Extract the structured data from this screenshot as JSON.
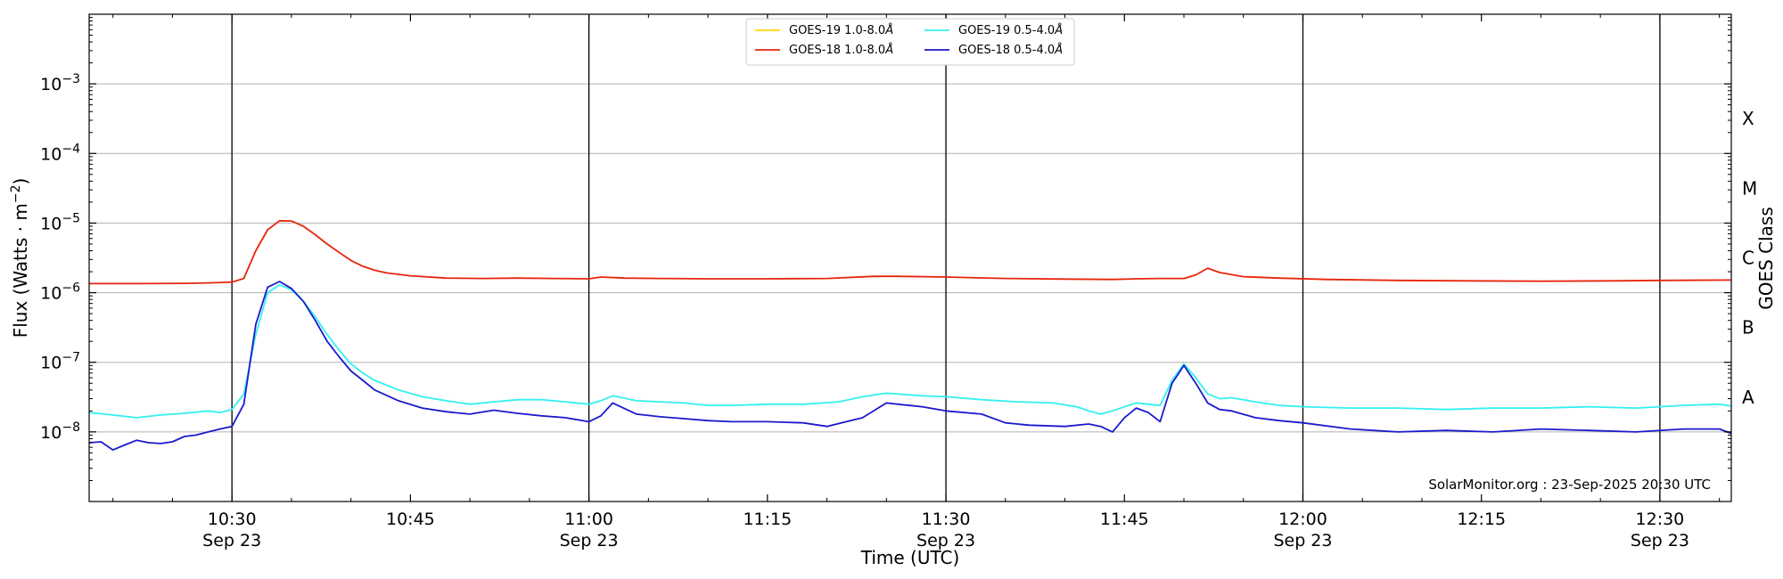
{
  "chart_data": {
    "type": "line",
    "title": "",
    "xlabel": "Time (UTC)",
    "ylabel": "Flux (Watts · m",
    "ylabel_exp": "−2",
    "ylabel_close": ")",
    "y2label": "GOES Class",
    "yscale": "log",
    "ylim": [
      1e-09,
      0.01
    ],
    "xlim": [
      "10:18",
      "12:36"
    ],
    "x_minutes_range": [
      618,
      756
    ],
    "grid": "horizontal at decades",
    "legend_position": "top-center",
    "annotation": "SolarMonitor.org : 23-Sep-2025 20:30 UTC",
    "y_ticks": [
      {
        "value": 1e-08,
        "base": "10",
        "exp": "−8"
      },
      {
        "value": 1e-07,
        "base": "10",
        "exp": "−7"
      },
      {
        "value": 1e-06,
        "base": "10",
        "exp": "−6"
      },
      {
        "value": 1e-05,
        "base": "10",
        "exp": "−5"
      },
      {
        "value": 0.0001,
        "base": "10",
        "exp": "−4"
      },
      {
        "value": 0.001,
        "base": "10",
        "exp": "−3"
      }
    ],
    "x_ticks": [
      {
        "time": "10:30",
        "minutes": 630,
        "date": "Sep 23",
        "major": true
      },
      {
        "time": "10:45",
        "minutes": 645,
        "date": "",
        "major": false
      },
      {
        "time": "11:00",
        "minutes": 660,
        "date": "Sep 23",
        "major": true
      },
      {
        "time": "11:15",
        "minutes": 675,
        "date": "",
        "major": false
      },
      {
        "time": "11:30",
        "minutes": 690,
        "date": "Sep 23",
        "major": true
      },
      {
        "time": "11:45",
        "minutes": 705,
        "date": "",
        "major": false
      },
      {
        "time": "12:00",
        "minutes": 720,
        "date": "Sep 23",
        "major": true
      },
      {
        "time": "12:15",
        "minutes": 735,
        "date": "",
        "major": false
      },
      {
        "time": "12:30",
        "minutes": 750,
        "date": "Sep 23",
        "major": true
      }
    ],
    "goes_classes": [
      {
        "label": "A",
        "value": 1e-08
      },
      {
        "label": "B",
        "value": 1e-07
      },
      {
        "label": "C",
        "value": 1e-06
      },
      {
        "label": "M",
        "value": 1e-05
      },
      {
        "label": "X",
        "value": 0.0001
      }
    ],
    "series": [
      {
        "name": "GOES-19 1.0-8.0",
        "name_unit": "Å",
        "color": "#ffd700",
        "x": [],
        "y": []
      },
      {
        "name": "GOES-18 1.0-8.0",
        "name_unit": "Å",
        "color": "#e8250c",
        "x": [
          618,
          622,
          626,
          628,
          630,
          631,
          632,
          633,
          634,
          635,
          636,
          637,
          638,
          639,
          640,
          641,
          642,
          643,
          645,
          648,
          651,
          654,
          657,
          660,
          661,
          663,
          666,
          670,
          675,
          680,
          684,
          686,
          690,
          695,
          700,
          704,
          706,
          708,
          710,
          711,
          712,
          713,
          715,
          718,
          722,
          728,
          734,
          740,
          746,
          750,
          756
        ],
        "y": [
          1.35e-06,
          1.35e-06,
          1.36e-06,
          1.38e-06,
          1.42e-06,
          1.6e-06,
          4e-06,
          8e-06,
          1.08e-05,
          1.07e-05,
          9e-06,
          6.8e-06,
          5e-06,
          3.8e-06,
          2.9e-06,
          2.4e-06,
          2.1e-06,
          1.92e-06,
          1.75e-06,
          1.62e-06,
          1.6e-06,
          1.62e-06,
          1.6e-06,
          1.58e-06,
          1.68e-06,
          1.62e-06,
          1.6e-06,
          1.58e-06,
          1.58e-06,
          1.6e-06,
          1.72e-06,
          1.72e-06,
          1.68e-06,
          1.6e-06,
          1.57e-06,
          1.55e-06,
          1.58e-06,
          1.6e-06,
          1.6e-06,
          1.8e-06,
          2.25e-06,
          1.95e-06,
          1.7e-06,
          1.62e-06,
          1.55e-06,
          1.5e-06,
          1.48e-06,
          1.46e-06,
          1.48e-06,
          1.5e-06,
          1.52e-06
        ]
      },
      {
        "name": "GOES-19 0.5-4.0",
        "name_unit": "Å",
        "color": "#33f0f0",
        "x": [
          618,
          620,
          622,
          624,
          626,
          628,
          629,
          630,
          631,
          632,
          633,
          634,
          635,
          636,
          637,
          638,
          639,
          640,
          641,
          642,
          644,
          646,
          648,
          650,
          652,
          654,
          656,
          658,
          660,
          661,
          662,
          664,
          666,
          668,
          670,
          672,
          675,
          678,
          681,
          683,
          685,
          688,
          690,
          693,
          696,
          699,
          701,
          702,
          703,
          704,
          705,
          706,
          707,
          708,
          709,
          710,
          711,
          712,
          713,
          714,
          716,
          718,
          720,
          724,
          728,
          732,
          736,
          740,
          744,
          748,
          752,
          755,
          756
        ],
        "y": [
          1.9e-08,
          1.75e-08,
          1.6e-08,
          1.75e-08,
          1.85e-08,
          2e-08,
          1.9e-08,
          2.1e-08,
          3.5e-08,
          2.5e-07,
          1e-06,
          1.3e-06,
          1.1e-06,
          7.5e-07,
          4.5e-07,
          2.5e-07,
          1.5e-07,
          9.5e-08,
          7e-08,
          5.5e-08,
          4e-08,
          3.2e-08,
          2.8e-08,
          2.5e-08,
          2.7e-08,
          2.9e-08,
          2.9e-08,
          2.7e-08,
          2.5e-08,
          2.8e-08,
          3.3e-08,
          2.8e-08,
          2.7e-08,
          2.6e-08,
          2.4e-08,
          2.4e-08,
          2.5e-08,
          2.5e-08,
          2.7e-08,
          3.2e-08,
          3.6e-08,
          3.3e-08,
          3.2e-08,
          2.9e-08,
          2.7e-08,
          2.6e-08,
          2.3e-08,
          2e-08,
          1.8e-08,
          2e-08,
          2.3e-08,
          2.6e-08,
          2.5e-08,
          2.4e-08,
          5.5e-08,
          9.5e-08,
          6e-08,
          3.5e-08,
          3e-08,
          3.1e-08,
          2.7e-08,
          2.4e-08,
          2.3e-08,
          2.2e-08,
          2.2e-08,
          2.1e-08,
          2.2e-08,
          2.2e-08,
          2.3e-08,
          2.2e-08,
          2.4e-08,
          2.5e-08,
          2.35e-08
        ]
      },
      {
        "name": "GOES-18 0.5-4.0",
        "name_unit": "Å",
        "color": "#1a1acc",
        "x": [
          618,
          619,
          620,
          621,
          622,
          623,
          624,
          625,
          626,
          627,
          628,
          629,
          630,
          631,
          632,
          633,
          634,
          635,
          636,
          637,
          638,
          639,
          640,
          641,
          642,
          644,
          646,
          648,
          650,
          652,
          654,
          656,
          658,
          660,
          661,
          662,
          664,
          666,
          668,
          670,
          672,
          675,
          678,
          680,
          683,
          685,
          688,
          690,
          693,
          695,
          697,
          700,
          702,
          703,
          704,
          705,
          706,
          707,
          708,
          709,
          710,
          711,
          712,
          713,
          714,
          716,
          718,
          720,
          724,
          728,
          732,
          736,
          740,
          744,
          748,
          752,
          755,
          756
        ],
        "y": [
          7e-09,
          7.2e-09,
          5.5e-09,
          6.5e-09,
          7.6e-09,
          7e-09,
          6.8e-09,
          7.2e-09,
          8.6e-09,
          9e-09,
          1e-08,
          1.1e-08,
          1.2e-08,
          2.5e-08,
          3.5e-07,
          1.2e-06,
          1.45e-06,
          1.15e-06,
          7.5e-07,
          4e-07,
          2e-07,
          1.2e-07,
          7.5e-08,
          5.5e-08,
          4e-08,
          2.8e-08,
          2.2e-08,
          1.95e-08,
          1.8e-08,
          2.05e-08,
          1.85e-08,
          1.7e-08,
          1.6e-08,
          1.4e-08,
          1.7e-08,
          2.6e-08,
          1.8e-08,
          1.65e-08,
          1.55e-08,
          1.45e-08,
          1.4e-08,
          1.4e-08,
          1.35e-08,
          1.2e-08,
          1.6e-08,
          2.6e-08,
          2.3e-08,
          2e-08,
          1.8e-08,
          1.35e-08,
          1.25e-08,
          1.2e-08,
          1.3e-08,
          1.2e-08,
          1e-08,
          1.6e-08,
          2.2e-08,
          1.9e-08,
          1.4e-08,
          5e-08,
          9e-08,
          5e-08,
          2.6e-08,
          2.1e-08,
          2e-08,
          1.6e-08,
          1.45e-08,
          1.35e-08,
          1.1e-08,
          1e-08,
          1.05e-08,
          1e-08,
          1.1e-08,
          1.05e-08,
          1e-08,
          1.1e-08,
          1.1e-08,
          9.5e-09
        ]
      }
    ]
  }
}
